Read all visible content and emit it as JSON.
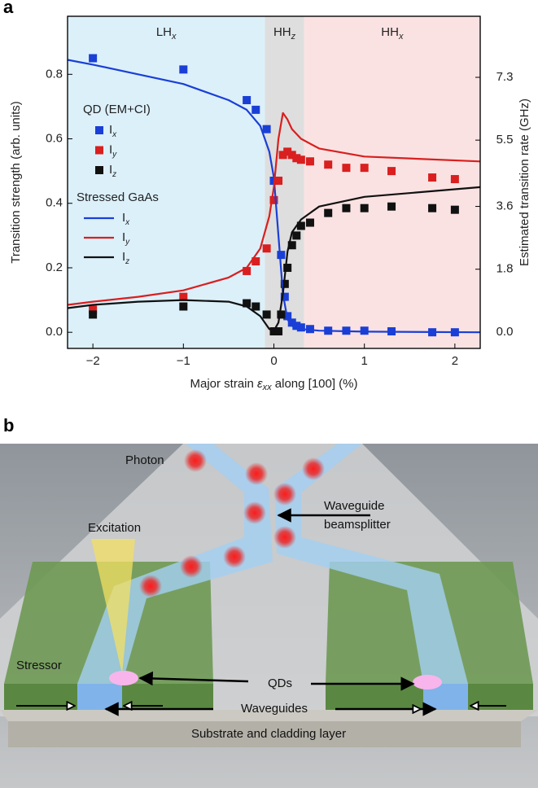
{
  "panel_labels": [
    "a",
    "b"
  ],
  "chart_data": {
    "type": "scatter",
    "x_label": [
      "Major strain ",
      "ε",
      "xx",
      " along [100] (%)"
    ],
    "y_label": "Transition strength (arb. units)",
    "y2_label": "Estimated transition rate (GHz)",
    "xlim": [
      -2.28,
      2.28
    ],
    "xticks": [
      {
        "value": -2,
        "label": "−2"
      },
      {
        "value": -1,
        "label": "−1"
      },
      0,
      1,
      2
    ],
    "ylim": [
      -0.05,
      0.98
    ],
    "yticks": [
      {
        "value": 0,
        "label": "0.0"
      },
      0.2,
      0.4,
      0.6,
      0.8
    ],
    "y2lim": [
      -0.47,
      9.05
    ],
    "y2ticks": [
      {
        "value": 0,
        "label": "0.0"
      },
      1.8,
      3.6,
      5.5,
      7.3
    ],
    "regions": [
      {
        "label": "LH",
        "subscript": "x",
        "range": [
          -2.28,
          -0.1
        ],
        "color": "#dcf0fa"
      },
      {
        "label": "HH",
        "subscript": "z",
        "range": [
          -0.1,
          0.335
        ],
        "color": "#dedede"
      },
      {
        "label": "HH",
        "subscript": "x",
        "range": [
          0.335,
          2.28
        ],
        "color": "#fbe2e2"
      }
    ],
    "legend_titles": [
      "QD (EM+CI)",
      "Stressed GaAs"
    ],
    "series": [
      {
        "name": "I",
        "subscript": "x",
        "style": "markers",
        "color": "#1a3fd6",
        "x": [
          -2,
          -1,
          -0.3,
          -0.2,
          -0.08,
          0,
          0.08,
          0.12,
          0.15,
          0.2,
          0.25,
          0.3,
          0.4,
          0.6,
          0.8,
          1,
          1.3,
          1.75,
          2
        ],
        "values": [
          0.85,
          0.815,
          0.72,
          0.69,
          0.63,
          0.47,
          0.24,
          0.11,
          0.05,
          0.03,
          0.02,
          0.015,
          0.01,
          0.005,
          0.005,
          0.005,
          0.003,
          0,
          0
        ]
      },
      {
        "name": "I",
        "subscript": "y",
        "style": "markers",
        "color": "#d91f1f",
        "x": [
          -2,
          -1,
          -0.3,
          -0.2,
          -0.08,
          0,
          0.05,
          0.1,
          0.15,
          0.2,
          0.25,
          0.3,
          0.4,
          0.6,
          0.8,
          1,
          1.3,
          1.75,
          2
        ],
        "values": [
          0.07,
          0.11,
          0.19,
          0.22,
          0.26,
          0.41,
          0.47,
          0.55,
          0.56,
          0.55,
          0.54,
          0.535,
          0.53,
          0.52,
          0.51,
          0.51,
          0.5,
          0.48,
          0.475
        ]
      },
      {
        "name": "I",
        "subscript": "z",
        "style": "markers",
        "color": "#111111",
        "x": [
          -2,
          -1,
          -0.3,
          -0.2,
          -0.08,
          0,
          0.05,
          0.08,
          0.12,
          0.15,
          0.2,
          0.25,
          0.3,
          0.4,
          0.6,
          0.8,
          1,
          1.3,
          1.75,
          2
        ],
        "values": [
          0.055,
          0.08,
          0.09,
          0.08,
          0.055,
          0.003,
          0.003,
          0.055,
          0.15,
          0.2,
          0.27,
          0.3,
          0.33,
          0.34,
          0.37,
          0.385,
          0.385,
          0.39,
          0.385,
          0.38
        ]
      },
      {
        "name": "I",
        "subscript": "x",
        "style": "line",
        "color": "#1a3fd6",
        "x": [
          -2.28,
          -2,
          -1.5,
          -1,
          -0.5,
          -0.3,
          -0.15,
          -0.05,
          0,
          0.05,
          0.1,
          0.15,
          0.2,
          0.3,
          0.5,
          1,
          2.28
        ],
        "values": [
          0.845,
          0.83,
          0.8,
          0.77,
          0.72,
          0.69,
          0.64,
          0.56,
          0.48,
          0.3,
          0.12,
          0.04,
          0.02,
          0.01,
          0.005,
          0.002,
          0
        ]
      },
      {
        "name": "I",
        "subscript": "y",
        "style": "line",
        "color": "#d91f1f",
        "x": [
          -2.28,
          -2,
          -1.5,
          -1,
          -0.5,
          -0.3,
          -0.15,
          -0.05,
          0,
          0.05,
          0.1,
          0.15,
          0.2,
          0.3,
          0.5,
          1,
          2.28
        ],
        "values": [
          0.085,
          0.095,
          0.11,
          0.13,
          0.17,
          0.2,
          0.26,
          0.36,
          0.45,
          0.6,
          0.68,
          0.66,
          0.63,
          0.6,
          0.57,
          0.545,
          0.53
        ]
      },
      {
        "name": "I",
        "subscript": "z",
        "style": "line",
        "color": "#111111",
        "x": [
          -2.28,
          -2,
          -1.5,
          -1,
          -0.5,
          -0.3,
          -0.15,
          -0.05,
          0,
          0.05,
          0.1,
          0.15,
          0.2,
          0.3,
          0.5,
          1,
          2.28
        ],
        "values": [
          0.075,
          0.085,
          0.095,
          0.1,
          0.095,
          0.08,
          0.05,
          0.01,
          0.005,
          0.03,
          0.12,
          0.25,
          0.31,
          0.35,
          0.39,
          0.42,
          0.45
        ]
      }
    ]
  },
  "diagram": {
    "photon": "Photon",
    "beamsplitter": [
      "Waveguide",
      "beamsplitter"
    ],
    "excitation": "Excitation",
    "stressor": "Stressor",
    "qds": "QDs",
    "waveguides": "Waveguides",
    "substrate": "Substrate and cladding layer"
  }
}
